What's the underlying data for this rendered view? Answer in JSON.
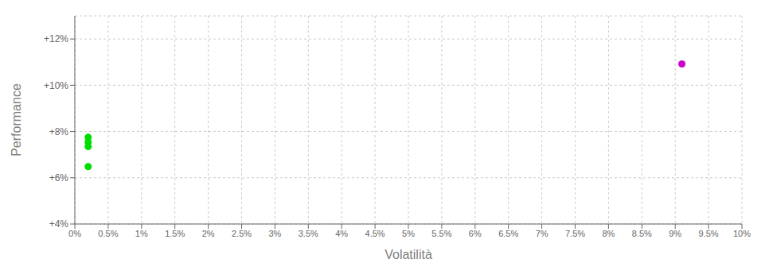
{
  "chart_data": {
    "type": "scatter",
    "xlabel": "Volatilità",
    "ylabel": "Performance",
    "xlim": [
      0,
      0.1
    ],
    "ylim": [
      0.04,
      0.13
    ],
    "xticks": [
      {
        "value": 0.0,
        "label": "0%"
      },
      {
        "value": 0.005,
        "label": "0.5%"
      },
      {
        "value": 0.01,
        "label": "1%"
      },
      {
        "value": 0.015,
        "label": "1.5%"
      },
      {
        "value": 0.02,
        "label": "2%"
      },
      {
        "value": 0.025,
        "label": "2.5%"
      },
      {
        "value": 0.03,
        "label": "3%"
      },
      {
        "value": 0.035,
        "label": "3.5%"
      },
      {
        "value": 0.04,
        "label": "4%"
      },
      {
        "value": 0.045,
        "label": "4.5%"
      },
      {
        "value": 0.05,
        "label": "5%"
      },
      {
        "value": 0.055,
        "label": "5.5%"
      },
      {
        "value": 0.06,
        "label": "6%"
      },
      {
        "value": 0.065,
        "label": "6.5%"
      },
      {
        "value": 0.07,
        "label": "7%"
      },
      {
        "value": 0.075,
        "label": "7.5%"
      },
      {
        "value": 0.08,
        "label": "8%"
      },
      {
        "value": 0.085,
        "label": "8.5%"
      },
      {
        "value": 0.09,
        "label": "9%"
      },
      {
        "value": 0.095,
        "label": "9.5%"
      },
      {
        "value": 0.1,
        "label": "10%"
      }
    ],
    "yticks": [
      {
        "value": 0.04,
        "label": "+4%"
      },
      {
        "value": 0.06,
        "label": "+6%"
      },
      {
        "value": 0.08,
        "label": "+8%"
      },
      {
        "value": 0.1,
        "label": "+10%"
      },
      {
        "value": 0.12,
        "label": "+12%"
      }
    ],
    "grid": true,
    "series": [
      {
        "color": "#00dd00",
        "x": [
          0.002,
          0.002,
          0.002,
          0.002
        ],
        "values": [
          0.0775,
          0.0755,
          0.0735,
          0.0648
        ]
      },
      {
        "color": "#cc00cc",
        "x": [
          0.091
        ],
        "values": [
          0.1092
        ]
      }
    ]
  }
}
